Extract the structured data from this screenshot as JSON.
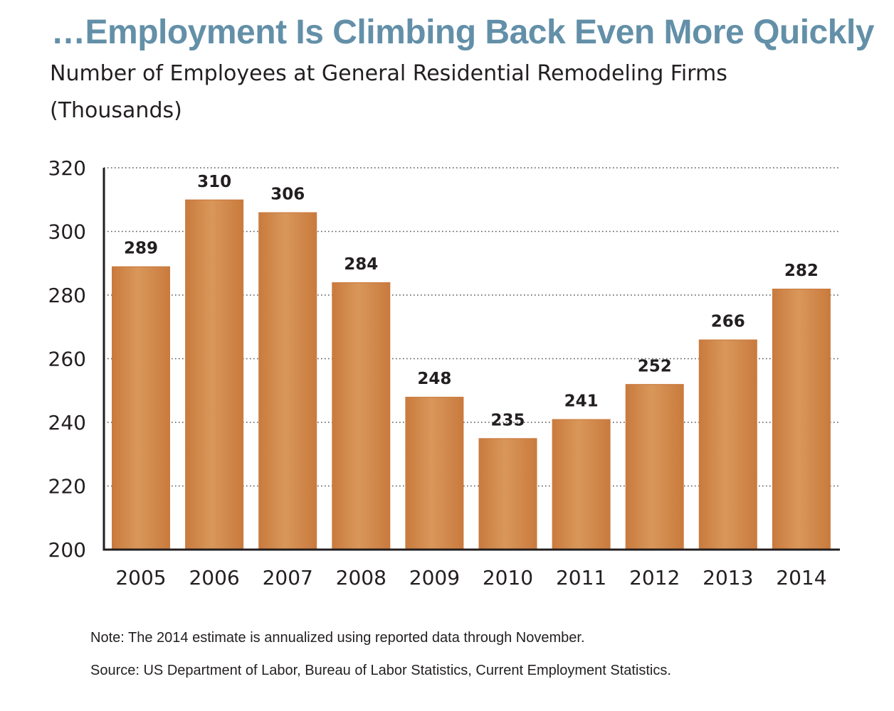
{
  "header": {
    "title": "…Employment Is Climbing Back Even More Quickly",
    "subtitle_line1": "Number of Employees at General Residential Remodeling Firms",
    "subtitle_line2": "(Thousands)"
  },
  "footer": {
    "note": "Note: The 2014 estimate is annualized using reported data through November.",
    "source": "Source: US Department of Labor, Bureau of Labor Statistics, Current Employment Statistics."
  },
  "colors": {
    "title": "#6390a8",
    "bar": "#d4894b",
    "bar_edge": "#c8773a",
    "text": "#231f20",
    "grid": "#555555"
  },
  "chart_data": {
    "type": "bar",
    "categories": [
      "2005",
      "2006",
      "2007",
      "2008",
      "2009",
      "2010",
      "2011",
      "2012",
      "2013",
      "2014"
    ],
    "values": [
      289,
      310,
      306,
      284,
      248,
      235,
      241,
      252,
      266,
      282
    ],
    "value_labels": [
      "289",
      "310",
      "306",
      "284",
      "248",
      "235",
      "241",
      "252",
      "266",
      "282"
    ],
    "yticks": [
      200,
      220,
      240,
      260,
      280,
      300,
      320
    ],
    "ytick_labels": [
      "200",
      "220",
      "240",
      "260",
      "280",
      "300",
      "320"
    ],
    "ylim": [
      200,
      320
    ],
    "grid": "horizontal dotted",
    "legend": "none",
    "xlabel": "",
    "ylabel": ""
  }
}
